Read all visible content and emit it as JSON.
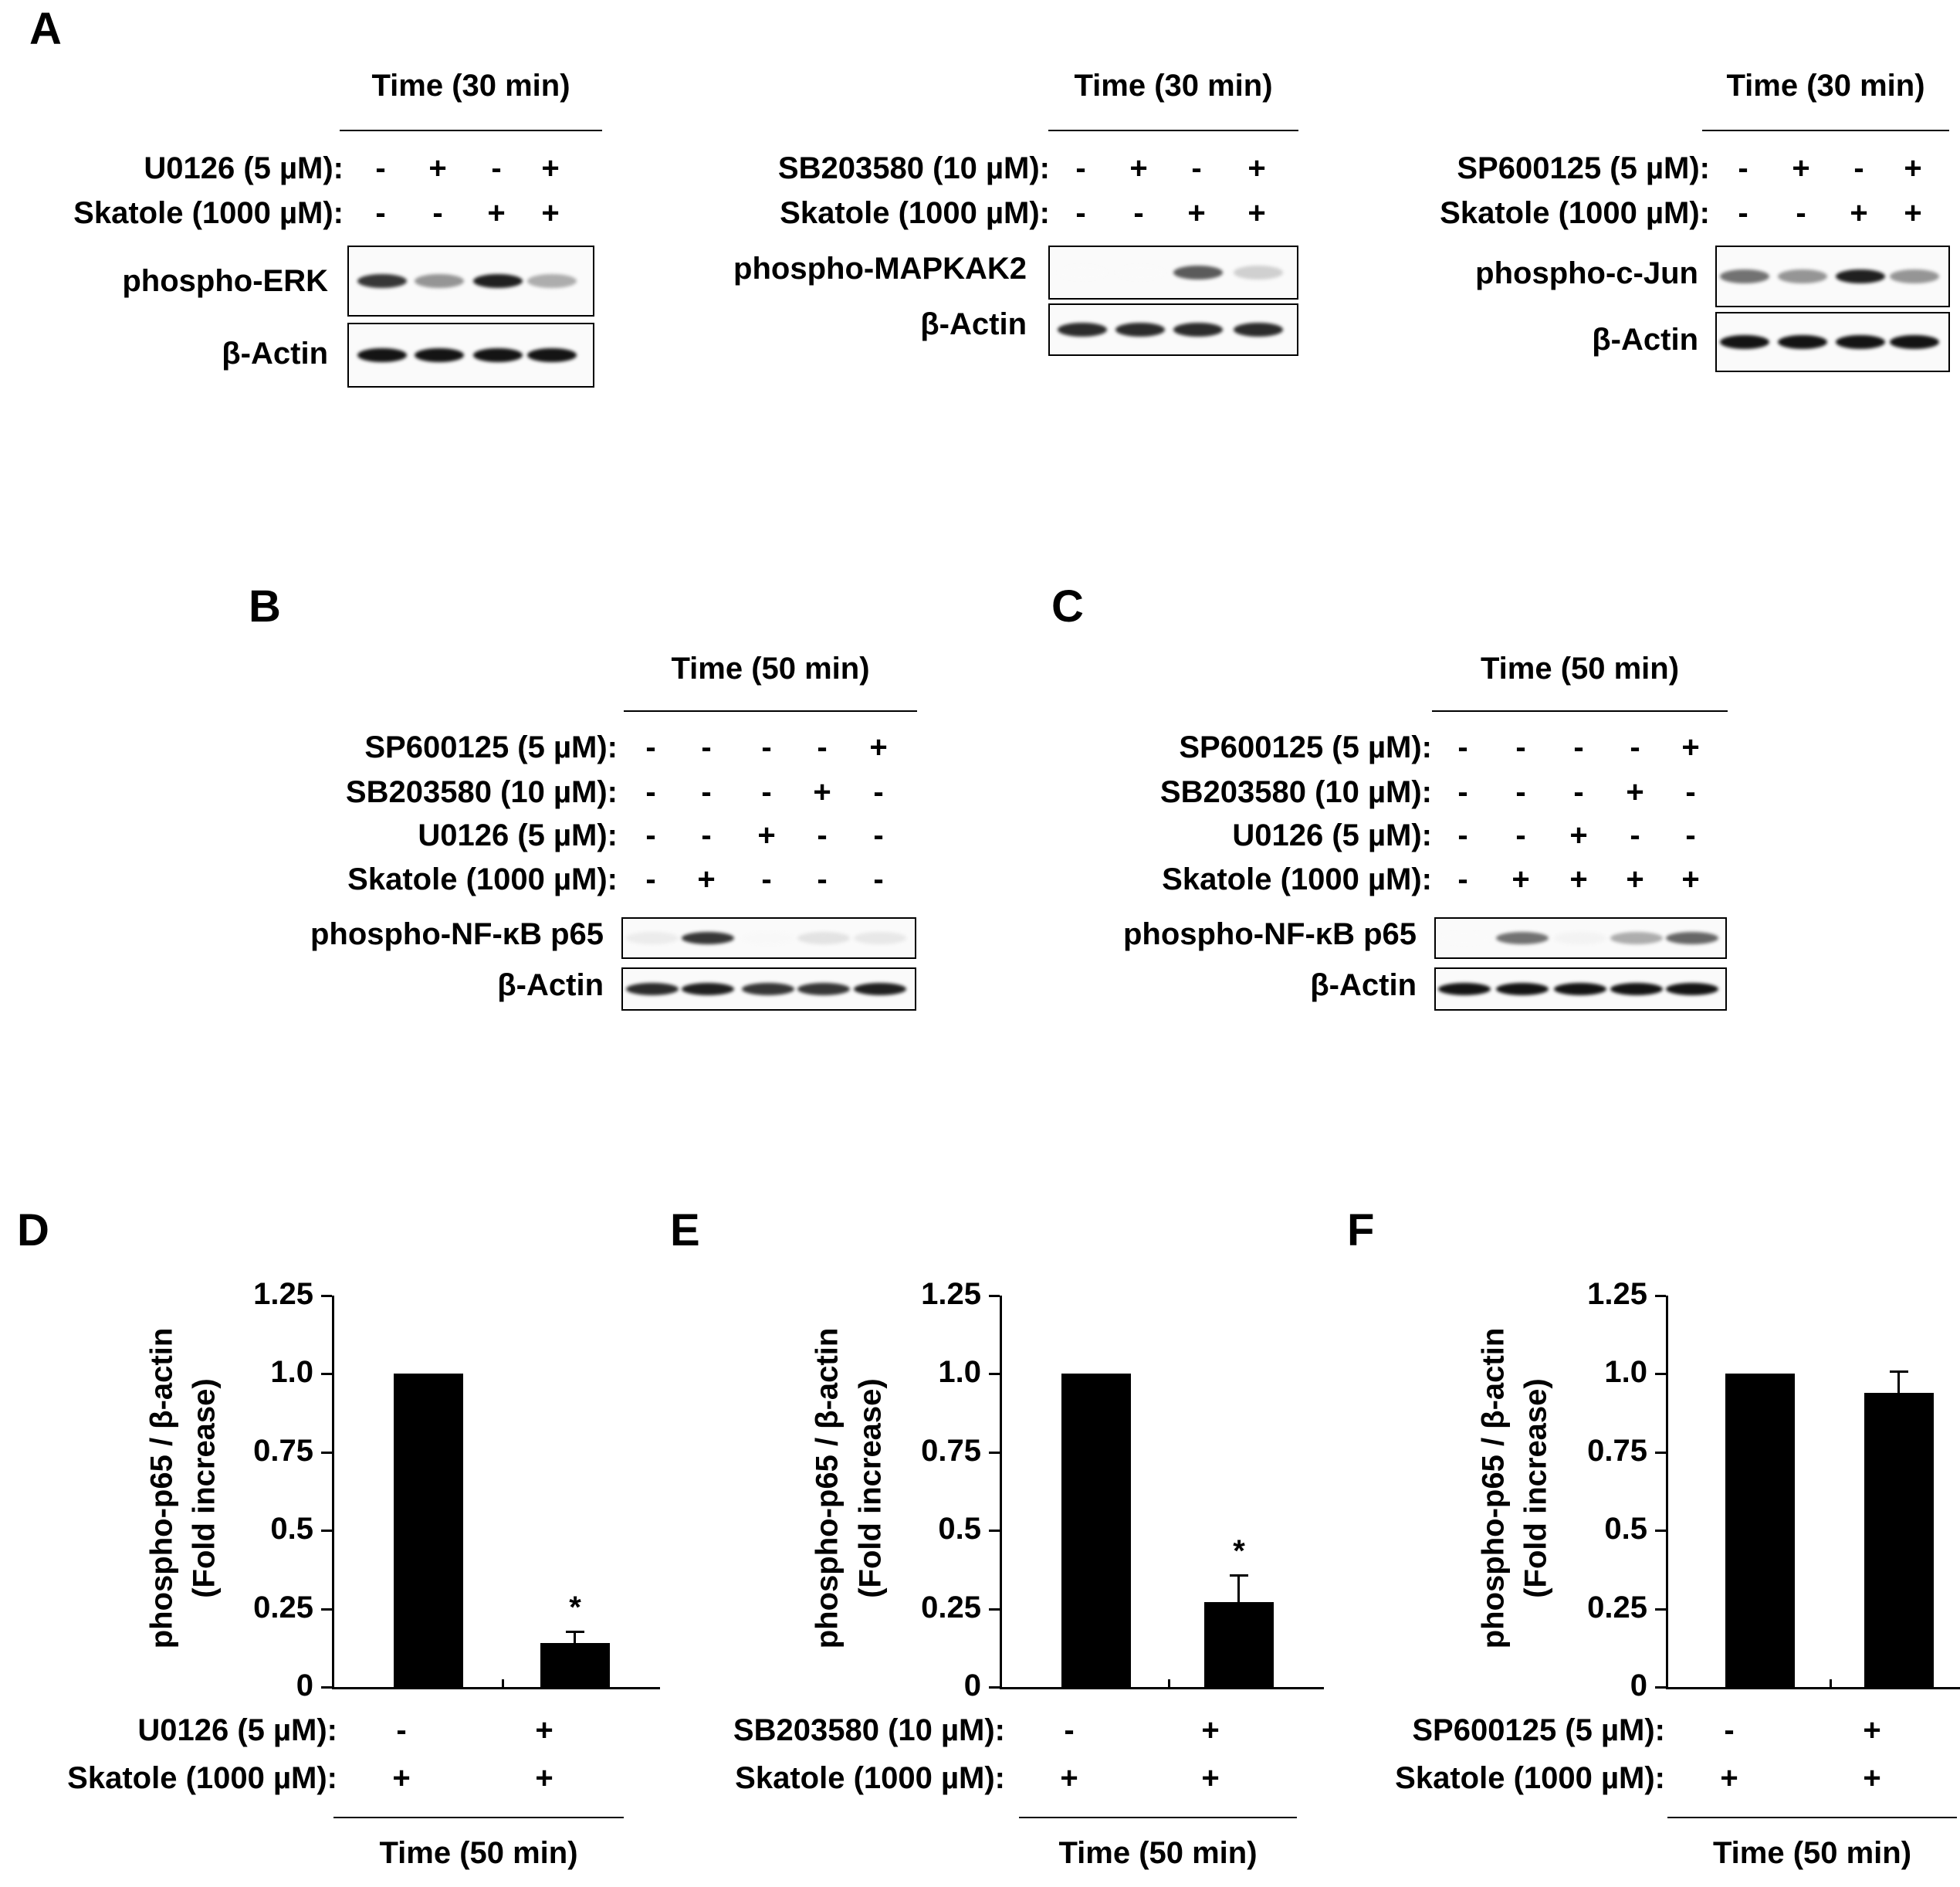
{
  "panelA": {
    "label": "A",
    "blots": [
      {
        "time": "Time  (30 min)",
        "rows": [
          {
            "label": "U0126 (5 µM):",
            "signs": [
              "-",
              "+",
              "-",
              "+"
            ]
          },
          {
            "label": "Skatole (1000 µM):",
            "signs": [
              "-",
              "-",
              "+",
              "+"
            ]
          }
        ],
        "bands": [
          "phospho-ERK",
          "β-Actin"
        ]
      },
      {
        "time": "Time  (30 min)",
        "rows": [
          {
            "label": "SB203580 (10 µM):",
            "signs": [
              "-",
              "+",
              "-",
              "+"
            ]
          },
          {
            "label": "Skatole (1000 µM):",
            "signs": [
              "-",
              "-",
              "+",
              "+"
            ]
          }
        ],
        "bands": [
          "phospho-MAPKAK2",
          "β-Actin"
        ]
      },
      {
        "time": "Time  (30 min)",
        "rows": [
          {
            "label": "SP600125 (5 µM):",
            "signs": [
              "-",
              "+",
              "-",
              "+"
            ]
          },
          {
            "label": "Skatole (1000 µM):",
            "signs": [
              "-",
              "-",
              "+",
              "+"
            ]
          }
        ],
        "bands": [
          "phospho-c-Jun",
          "β-Actin"
        ]
      }
    ]
  },
  "panelB": {
    "label": "B",
    "time": "Time  (50 min)",
    "rows": [
      {
        "label": "SP600125 (5 µM):",
        "signs": [
          "-",
          "-",
          "-",
          "-",
          "+"
        ]
      },
      {
        "label": "SB203580 (10 µM):",
        "signs": [
          "-",
          "-",
          "-",
          "+",
          "-"
        ]
      },
      {
        "label": "U0126 (5 µM):",
        "signs": [
          "-",
          "-",
          "+",
          "-",
          "-"
        ]
      },
      {
        "label": "Skatole (1000 µM):",
        "signs": [
          "-",
          "+",
          "-",
          "-",
          "-"
        ]
      }
    ],
    "bands": [
      "phospho-NF-κB p65",
      "β-Actin"
    ]
  },
  "panelC": {
    "label": "C",
    "time": "Time  (50 min)",
    "rows": [
      {
        "label": "SP600125 (5 µM):",
        "signs": [
          "-",
          "-",
          "-",
          "-",
          "+"
        ]
      },
      {
        "label": "SB203580 (10 µM):",
        "signs": [
          "-",
          "-",
          "-",
          "+",
          "-"
        ]
      },
      {
        "label": "U0126 (5 µM):",
        "signs": [
          "-",
          "-",
          "+",
          "-",
          "-"
        ]
      },
      {
        "label": "Skatole (1000 µM):",
        "signs": [
          "-",
          "+",
          "+",
          "+",
          "+"
        ]
      }
    ],
    "bands": [
      "phospho-NF-κB p65",
      "β-Actin"
    ]
  },
  "chart_data": [
    {
      "panel": "D",
      "type": "bar",
      "ylabel": "phospho-p65 / β-actin",
      "ylabel2": "(Fold increase)",
      "ylim": [
        0,
        1.25
      ],
      "yticks": [
        "0",
        "0.25",
        "0.5",
        "0.75",
        "1.0",
        "1.25"
      ],
      "values": [
        1.0,
        0.14
      ],
      "errors": [
        0,
        0.04
      ],
      "significance": [
        "",
        "*"
      ],
      "rows": [
        {
          "label": "U0126 (5 µM):",
          "signs": [
            "-",
            "+"
          ]
        },
        {
          "label": "Skatole (1000 µM):",
          "signs": [
            "+",
            "+"
          ]
        }
      ],
      "xlabel": "Time (50 min)"
    },
    {
      "panel": "E",
      "type": "bar",
      "ylabel": "phospho-p65 / β-actin",
      "ylabel2": "(Fold increase)",
      "ylim": [
        0,
        1.25
      ],
      "yticks": [
        "0",
        "0.25",
        "0.5",
        "0.75",
        "1.0",
        "1.25"
      ],
      "values": [
        1.0,
        0.27
      ],
      "errors": [
        0,
        0.09
      ],
      "significance": [
        "",
        "*"
      ],
      "rows": [
        {
          "label": "SB203580 (10 µM):",
          "signs": [
            "-",
            "+"
          ]
        },
        {
          "label": "Skatole (1000 µM):",
          "signs": [
            "+",
            "+"
          ]
        }
      ],
      "xlabel": "Time (50 min)"
    },
    {
      "panel": "F",
      "type": "bar",
      "ylabel": "phospho-p65 / β-actin",
      "ylabel2": "(Fold increase)",
      "ylim": [
        0,
        1.25
      ],
      "yticks": [
        "0",
        "0.25",
        "0.5",
        "0.75",
        "1.0",
        "1.25"
      ],
      "values": [
        1.0,
        0.94
      ],
      "errors": [
        0,
        0.07
      ],
      "significance": [
        "",
        ""
      ],
      "rows": [
        {
          "label": "SP600125 (5 µM):",
          "signs": [
            "-",
            "+"
          ]
        },
        {
          "label": "Skatole (1000 µM):",
          "signs": [
            "+",
            "+"
          ]
        }
      ],
      "xlabel": "Time (50 min)"
    }
  ]
}
